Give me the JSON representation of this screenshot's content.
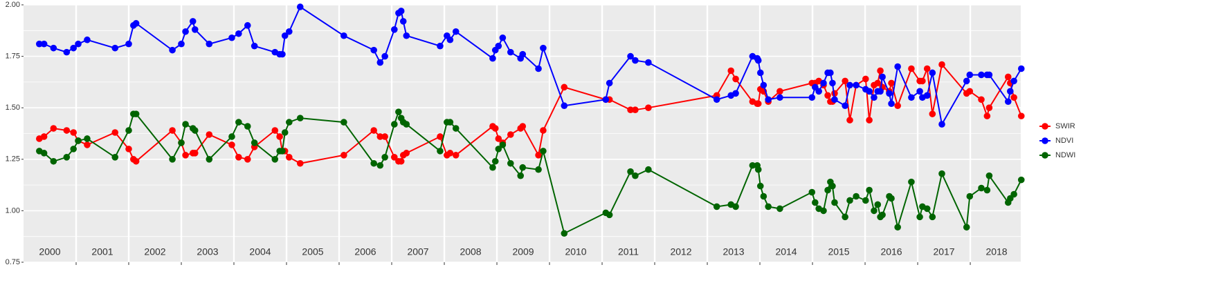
{
  "chart_data": {
    "type": "line",
    "x": [
      2000.3,
      2000.39,
      2000.57,
      2000.82,
      2000.95,
      2001.04,
      2001.21,
      2001.74,
      2002.0,
      2002.09,
      2002.14,
      2002.83,
      2003.0,
      2003.08,
      2003.22,
      2003.26,
      2003.53,
      2003.96,
      2004.09,
      2004.26,
      2004.39,
      2004.78,
      2004.87,
      2004.92,
      2004.97,
      2005.05,
      2005.26,
      2006.09,
      2006.66,
      2006.78,
      2006.87,
      2007.05,
      2007.13,
      2007.18,
      2007.22,
      2007.28,
      2007.92,
      2008.05,
      2008.11,
      2008.22,
      2008.92,
      2008.97,
      2009.03,
      2009.11,
      2009.26,
      2009.45,
      2009.49,
      2009.79,
      2009.88,
      2010.28,
      2011.07,
      2011.14,
      2011.54,
      2011.63,
      2011.88,
      2013.18,
      2013.45,
      2013.54,
      2013.86,
      2013.95,
      2013.97,
      2014.01,
      2014.07,
      2014.16,
      2014.38,
      2014.99,
      2015.05,
      2015.12,
      2015.21,
      2015.29,
      2015.34,
      2015.38,
      2015.42,
      2015.62,
      2015.71,
      2015.83,
      2016.01,
      2016.08,
      2016.17,
      2016.24,
      2016.29,
      2016.33,
      2016.46,
      2016.5,
      2016.62,
      2016.88,
      2017.04,
      2017.09,
      2017.18,
      2017.28,
      2017.46,
      2017.93,
      2017.99,
      2018.21,
      2018.32,
      2018.36,
      2018.72,
      2018.76,
      2018.83,
      2018.97
    ],
    "series": [
      {
        "name": "SWIR",
        "color": "#ff0000",
        "values": [
          1.35,
          1.36,
          1.4,
          1.39,
          1.38,
          1.34,
          1.32,
          1.38,
          1.3,
          1.25,
          1.24,
          1.39,
          1.33,
          1.27,
          1.28,
          1.28,
          1.37,
          1.32,
          1.26,
          1.25,
          1.31,
          1.39,
          1.36,
          1.29,
          1.29,
          1.26,
          1.23,
          1.27,
          1.39,
          1.36,
          1.36,
          1.26,
          1.24,
          1.24,
          1.27,
          1.28,
          1.36,
          1.27,
          1.28,
          1.27,
          1.41,
          1.4,
          1.35,
          1.33,
          1.37,
          1.4,
          1.41,
          1.27,
          1.39,
          1.6,
          1.54,
          1.54,
          1.49,
          1.49,
          1.5,
          1.56,
          1.68,
          1.64,
          1.53,
          1.52,
          1.52,
          1.59,
          1.58,
          1.53,
          1.58,
          1.62,
          1.62,
          1.63,
          1.61,
          1.56,
          1.53,
          1.53,
          1.57,
          1.63,
          1.44,
          1.61,
          1.64,
          1.44,
          1.61,
          1.62,
          1.68,
          1.6,
          1.58,
          1.62,
          1.51,
          1.69,
          1.63,
          1.63,
          1.69,
          1.47,
          1.71,
          1.57,
          1.58,
          1.54,
          1.46,
          1.5,
          1.65,
          1.62,
          1.55,
          1.46
        ]
      },
      {
        "name": "NDVI",
        "color": "#0000ff",
        "values": [
          1.81,
          1.81,
          1.79,
          1.77,
          1.79,
          1.81,
          1.83,
          1.79,
          1.81,
          1.9,
          1.91,
          1.78,
          1.81,
          1.87,
          1.92,
          1.88,
          1.81,
          1.84,
          1.86,
          1.9,
          1.8,
          1.77,
          1.76,
          1.76,
          1.85,
          1.87,
          1.99,
          1.85,
          1.78,
          1.72,
          1.75,
          1.88,
          1.96,
          1.97,
          1.92,
          1.85,
          1.8,
          1.85,
          1.83,
          1.87,
          1.74,
          1.78,
          1.8,
          1.84,
          1.77,
          1.74,
          1.76,
          1.69,
          1.79,
          1.51,
          1.54,
          1.62,
          1.75,
          1.73,
          1.72,
          1.54,
          1.56,
          1.57,
          1.75,
          1.74,
          1.73,
          1.67,
          1.61,
          1.54,
          1.55,
          1.55,
          1.6,
          1.58,
          1.62,
          1.67,
          1.67,
          1.62,
          1.54,
          1.51,
          1.61,
          1.61,
          1.59,
          1.58,
          1.55,
          1.58,
          1.58,
          1.65,
          1.57,
          1.52,
          1.7,
          1.55,
          1.58,
          1.55,
          1.56,
          1.67,
          1.42,
          1.63,
          1.66,
          1.66,
          1.66,
          1.66,
          1.53,
          1.58,
          1.63,
          1.69
        ]
      },
      {
        "name": "NDWI",
        "color": "#006400",
        "values": [
          1.29,
          1.28,
          1.24,
          1.26,
          1.3,
          1.34,
          1.35,
          1.26,
          1.39,
          1.47,
          1.47,
          1.25,
          1.33,
          1.42,
          1.4,
          1.39,
          1.25,
          1.36,
          1.43,
          1.41,
          1.33,
          1.25,
          1.29,
          1.29,
          1.38,
          1.43,
          1.45,
          1.43,
          1.23,
          1.22,
          1.26,
          1.42,
          1.48,
          1.45,
          1.43,
          1.42,
          1.29,
          1.43,
          1.43,
          1.4,
          1.21,
          1.24,
          1.3,
          1.32,
          1.23,
          1.17,
          1.21,
          1.2,
          1.29,
          0.89,
          0.99,
          0.98,
          1.19,
          1.17,
          1.2,
          1.02,
          1.03,
          1.02,
          1.22,
          1.22,
          1.2,
          1.12,
          1.07,
          1.02,
          1.01,
          1.09,
          1.04,
          1.01,
          1.0,
          1.1,
          1.14,
          1.12,
          1.04,
          0.97,
          1.05,
          1.07,
          1.05,
          1.1,
          1.0,
          1.03,
          0.97,
          0.98,
          1.07,
          1.06,
          0.92,
          1.14,
          0.97,
          1.02,
          1.01,
          0.97,
          1.18,
          0.92,
          1.07,
          1.11,
          1.1,
          1.17,
          1.04,
          1.06,
          1.08,
          1.15
        ]
      }
    ],
    "year_labels": [
      "2000",
      "2001",
      "2002",
      "2003",
      "2004",
      "2005",
      "2006",
      "2007",
      "2008",
      "2009",
      "2010",
      "2011",
      "2012",
      "2013",
      "2014",
      "2015",
      "2016",
      "2017",
      "2018"
    ],
    "xlim": [
      2000,
      2018.96
    ],
    "xticks": [
      2001,
      2002,
      2003,
      2004,
      2005,
      2006,
      2007,
      2008,
      2009,
      2010,
      2011,
      2012,
      2013,
      2014,
      2015,
      2016,
      2017,
      2018
    ],
    "ylim": [
      0.75,
      2.0
    ],
    "yticks": [
      {
        "value": 0.75,
        "label": "0.75"
      },
      {
        "value": 1.0,
        "label": "1.00"
      },
      {
        "value": 1.25,
        "label": "1.25"
      },
      {
        "value": 1.5,
        "label": "1.50"
      },
      {
        "value": 1.75,
        "label": "1.75"
      },
      {
        "value": 2.0,
        "label": "2.00"
      }
    ],
    "grid": true,
    "minor_grid": true,
    "legend": "right"
  }
}
